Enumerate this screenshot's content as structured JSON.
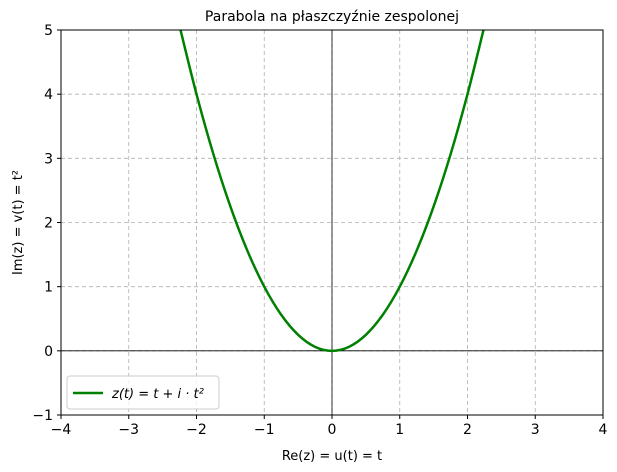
{
  "chart_data": {
    "type": "line",
    "title": "Parabola na płaszczyźnie zespolonej",
    "xlabel": "Re(z) = u(t) = t",
    "ylabel": "Im(z) = v(t) = t²",
    "xlim": [
      -4,
      4
    ],
    "ylim": [
      -1,
      5
    ],
    "xticks": [
      -4,
      -3,
      -2,
      -1,
      0,
      1,
      2,
      3,
      4
    ],
    "yticks": [
      -1,
      0,
      1,
      2,
      3,
      4,
      5
    ],
    "xtick_labels": [
      "−4",
      "−3",
      "−2",
      "−1",
      "0",
      "1",
      "2",
      "3",
      "4"
    ],
    "ytick_labels": [
      "−1",
      "0",
      "1",
      "2",
      "3",
      "4",
      "5"
    ],
    "grid": true,
    "legend_position": "lower-left",
    "series": [
      {
        "name": "z(t) = t + i · t²",
        "color": "#008000",
        "x": [
          -2.236,
          -2.0,
          -1.75,
          -1.5,
          -1.25,
          -1.0,
          -0.75,
          -0.5,
          -0.25,
          0.0,
          0.25,
          0.5,
          0.75,
          1.0,
          1.25,
          1.5,
          1.75,
          2.0,
          2.236
        ],
        "y": [
          5.0,
          4.0,
          3.0625,
          2.25,
          1.5625,
          1.0,
          0.5625,
          0.25,
          0.0625,
          0.0,
          0.0625,
          0.25,
          0.5625,
          1.0,
          1.5625,
          2.25,
          3.0625,
          4.0,
          5.0
        ]
      }
    ]
  }
}
